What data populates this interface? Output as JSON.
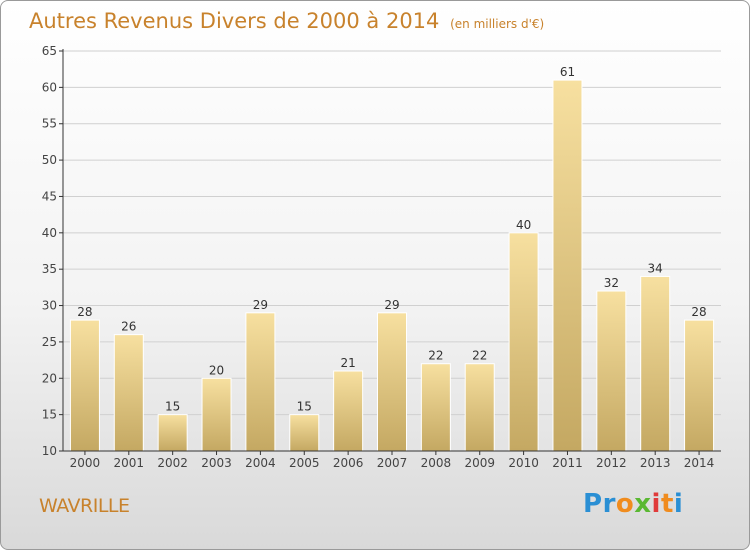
{
  "title": "Autres Revenus Divers de 2000 à 2014",
  "subtitle": "(en milliers d'€)",
  "place_label": "WAVRILLE",
  "logo": {
    "letters": [
      "P",
      "r",
      "o",
      "x",
      "i",
      "t",
      "i"
    ],
    "colors": [
      "#2a8fd4",
      "#2a8fd4",
      "#f08c1e",
      "#5ab832",
      "#e03a3a",
      "#f08c1e",
      "#2a8fd4"
    ]
  },
  "colors": {
    "title": "#c8822c",
    "bar_top": "#f7e0a0",
    "bar_bottom": "#c4a862",
    "axis": "#333333",
    "grid": "#d0d0d0"
  },
  "chart_data": {
    "type": "bar",
    "categories": [
      "2000",
      "2001",
      "2002",
      "2003",
      "2004",
      "2005",
      "2006",
      "2007",
      "2008",
      "2009",
      "2010",
      "2011",
      "2012",
      "2013",
      "2014"
    ],
    "values": [
      28,
      26,
      15,
      20,
      29,
      15,
      21,
      29,
      22,
      22,
      40,
      61,
      32,
      34,
      28
    ],
    "title": "Autres Revenus Divers de 2000 à 2014",
    "xlabel": "",
    "ylabel": "",
    "ylim": [
      10,
      65
    ],
    "yticks": [
      10,
      15,
      20,
      25,
      30,
      35,
      40,
      45,
      50,
      55,
      60,
      65
    ],
    "grid": true,
    "data_labels": true
  }
}
